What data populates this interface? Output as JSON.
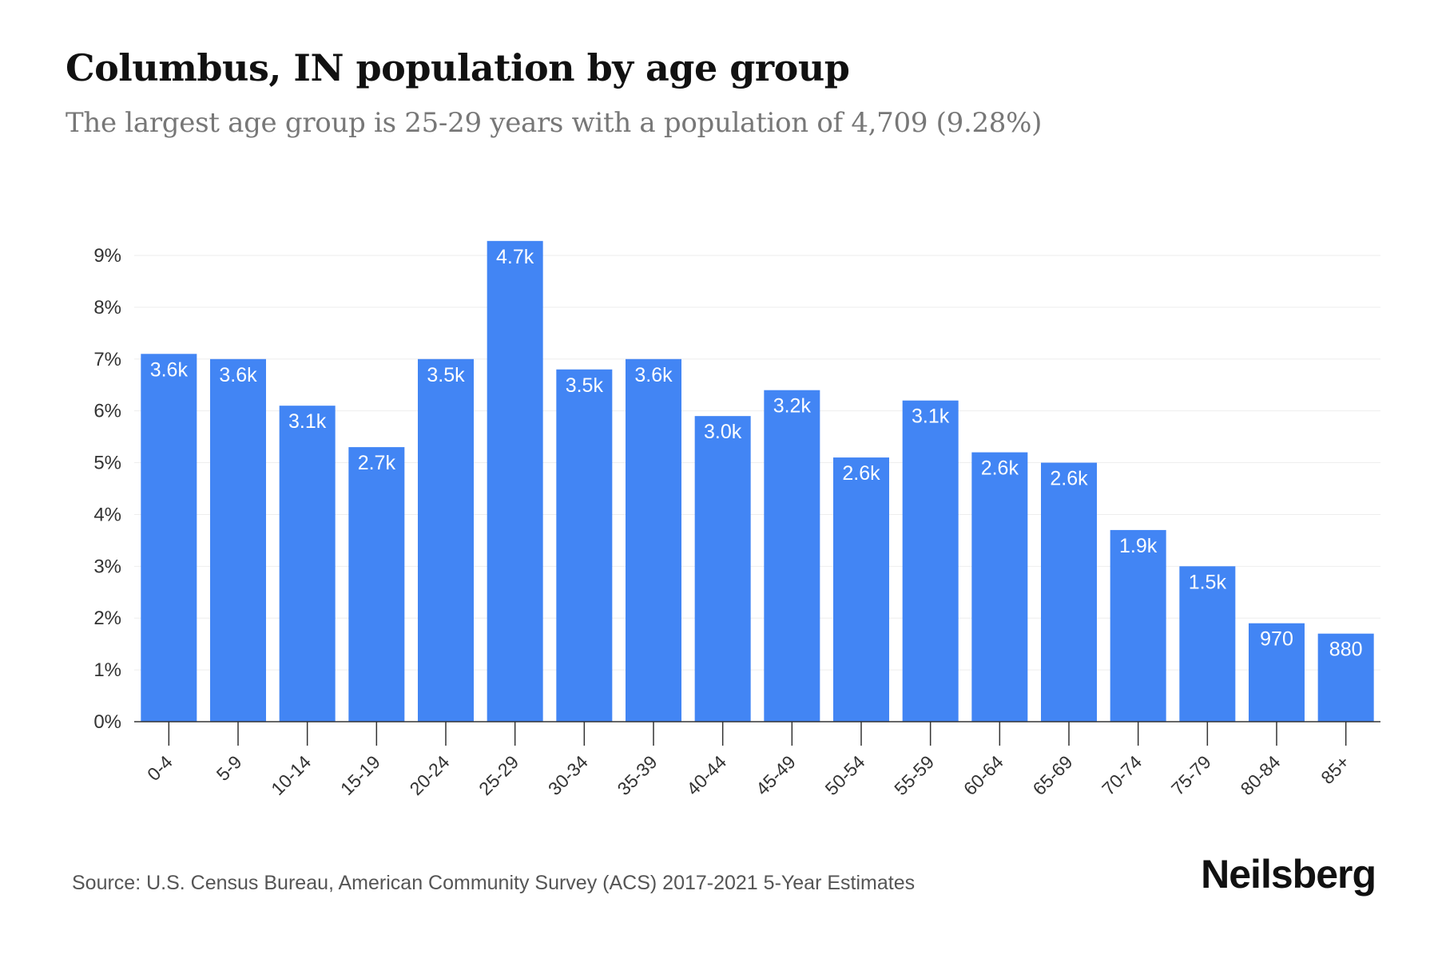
{
  "header": {
    "title": "Columbus, IN population by age group",
    "subtitle": "The largest age group is 25-29 years with a population of 4,709 (9.28%)"
  },
  "footer": {
    "source": "Source: U.S. Census Bureau, American Community Survey (ACS) 2017-2021 5-Year Estimates",
    "brand": "Neilsberg"
  },
  "colors": {
    "bar": "#4285f4",
    "grid": "#eeeeee",
    "axis": "#333333"
  },
  "chart_data": {
    "type": "bar",
    "categories": [
      "0-4",
      "5-9",
      "10-14",
      "15-19",
      "20-24",
      "25-29",
      "30-34",
      "35-39",
      "40-44",
      "45-49",
      "50-54",
      "55-59",
      "60-64",
      "65-69",
      "70-74",
      "75-79",
      "80-84",
      "85+"
    ],
    "values": [
      7.1,
      7.0,
      6.1,
      5.3,
      7.0,
      9.28,
      6.8,
      7.0,
      5.9,
      6.4,
      5.1,
      6.2,
      5.2,
      5.0,
      3.7,
      3.0,
      1.9,
      1.7
    ],
    "data_labels": [
      "3.6k",
      "3.6k",
      "3.1k",
      "2.7k",
      "3.5k",
      "4.7k",
      "3.5k",
      "3.6k",
      "3.0k",
      "3.2k",
      "2.6k",
      "3.1k",
      "2.6k",
      "2.6k",
      "1.9k",
      "1.5k",
      "970",
      "880"
    ],
    "y_ticks": [
      "0%",
      "1%",
      "2%",
      "3%",
      "4%",
      "5%",
      "6%",
      "7%",
      "8%",
      "9%"
    ],
    "ylim": [
      0,
      9
    ],
    "grid": true,
    "legend": "none"
  }
}
